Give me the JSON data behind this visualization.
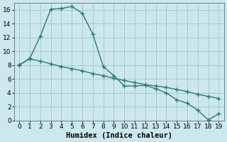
{
  "line1_x": [
    0,
    1,
    2,
    3,
    4,
    5,
    6,
    7,
    8,
    9,
    10,
    11,
    12,
    13,
    14,
    15,
    16,
    17,
    18,
    19
  ],
  "line1_y": [
    8.0,
    9.0,
    12.2,
    16.1,
    16.2,
    16.5,
    15.5,
    12.5,
    7.8,
    6.5,
    5.0,
    5.0,
    5.1,
    4.6,
    4.0,
    3.0,
    2.5,
    1.5,
    0.1,
    1.0
  ],
  "line2_x": [
    0,
    1,
    2,
    3,
    4,
    5,
    6,
    7,
    8,
    9,
    10,
    11,
    12,
    13,
    14,
    15,
    16,
    17,
    18,
    19
  ],
  "line2_y": [
    8.1,
    8.9,
    8.6,
    8.2,
    7.8,
    7.5,
    7.2,
    6.8,
    6.5,
    6.1,
    5.8,
    5.5,
    5.2,
    5.0,
    4.8,
    4.5,
    4.2,
    3.8,
    3.5,
    3.2
  ],
  "line_color": "#2e7d6e",
  "bg_color": "#cce8ec",
  "grid_color": "#a8cccc",
  "xlabel": "Humidex (Indice chaleur)",
  "xlim": [
    -0.5,
    19.5
  ],
  "ylim": [
    0,
    17
  ],
  "xticks": [
    0,
    1,
    2,
    3,
    4,
    5,
    6,
    7,
    8,
    9,
    10,
    11,
    12,
    13,
    14,
    15,
    16,
    17,
    18,
    19
  ],
  "yticks": [
    0,
    2,
    4,
    6,
    8,
    10,
    12,
    14,
    16
  ],
  "marker": "+",
  "marker_size": 4,
  "linewidth": 1.0,
  "font_size": 6.5,
  "xlabel_fontsize": 7.5
}
